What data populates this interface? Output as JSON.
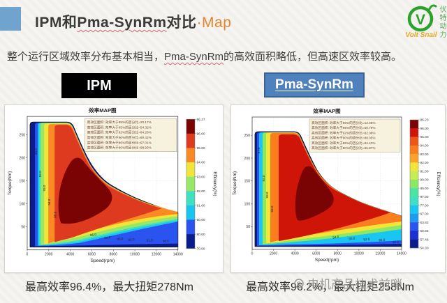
{
  "header": {
    "title_p1": "IPM和",
    "title_p2": "Pma-SynRm",
    "title_p3": "对比",
    "title_accent": "·Map",
    "logo": {
      "letter": "V",
      "brand": "Volt Snail",
      "vertical_text": "伏特动力"
    }
  },
  "subtitle": {
    "p1": "整个运行区域效率分布基本相当，",
    "hl": "Pma-SynRm",
    "p2": "的高效面积略低，但高速区效率较高。"
  },
  "section_labels": {
    "left": "IPM",
    "right": "Pma-SynRm"
  },
  "captions": {
    "left": "最高效率96.4%，最大扭矩278Nm",
    "right": "最高效率96.2%，最大扭矩258Nm"
  },
  "watermark": {
    "text": "电机产品技术前哨"
  },
  "colors": {
    "title_accent": "#e8842c",
    "header_bullet_blue": "#71a3cf",
    "pma_box_blue": "#4f81bd",
    "ipm_box_black": "#000000",
    "logo_green": "#2da12d",
    "logo_brand_yellow": "#e9a61f"
  },
  "chart_data": [
    {
      "type": "heatmap",
      "variant": "efficiency-contour-map",
      "motor": "IPM",
      "title": "效率MAP图",
      "xlabel": "Speed(rpm)",
      "ylabel": "Torque(Nm)",
      "colorbar_label": "Efficiency(%)",
      "xlim": [
        0,
        14000
      ],
      "ylim": [
        0,
        290
      ],
      "xticks": [
        0,
        2000,
        4000,
        6000,
        8000,
        10000,
        12000,
        14000
      ],
      "yticks": [
        50,
        100,
        150,
        200,
        250
      ],
      "max_torque_nm": 278,
      "peak_efficiency_pct": 96.4,
      "legend_lines": [
        "高效区面积: 效率大于96%的百分比=20.17%",
        "高效区面积: 效率大于95%的百分比=54.32%",
        "高效区面积: 效率大于92%的百分比=84.26%",
        "高效区面积: 效率大于90%的百分比=90.42%",
        "高效区面积: 效率大于85%的百分比=97.01%",
        "高效区面积: 效率大于80%的百分比=98.93%"
      ],
      "colorbar_ticks": [
        "96.27",
        "96.00",
        "95.00",
        "94.00",
        "93.00",
        "92.00",
        "91.00",
        "90.00",
        "80.00",
        "70.00"
      ],
      "colorbar_colors": [
        "#7a0403",
        "#dd3a20",
        "#fb8a24",
        "#f2e53a",
        "#96e866",
        "#3fe0c0",
        "#19c6f2",
        "#2a53f0",
        "#0b1c8c"
      ],
      "contour_labels": [
        {
          "t": "90.0",
          "x": 44,
          "y": 66,
          "r": -90
        },
        {
          "t": "92.0",
          "x": 50,
          "y": 98,
          "r": -90
        },
        {
          "t": "93.0",
          "x": 56,
          "y": 118,
          "r": -90
        },
        {
          "t": "94.0",
          "x": 63,
          "y": 138,
          "r": -90
        },
        {
          "t": "95.0",
          "x": 71,
          "y": 156,
          "r": -90
        },
        {
          "t": "95.0",
          "x": 124,
          "y": 186,
          "r": -8
        },
        {
          "t": "94.0",
          "x": 144,
          "y": 190,
          "r": -8
        },
        {
          "t": "93.0",
          "x": 162,
          "y": 192,
          "r": -7
        },
        {
          "t": "92.0",
          "x": 178,
          "y": 193,
          "r": -6
        },
        {
          "t": "91.0",
          "x": 204,
          "y": 194,
          "r": -5
        },
        {
          "t": "90.0",
          "x": 227,
          "y": 195,
          "r": -4
        }
      ]
    },
    {
      "type": "heatmap",
      "variant": "efficiency-contour-map",
      "motor": "Pma-SynRm",
      "title": "效率MAP图",
      "xlabel": "Speed(rpm)",
      "ylabel": "Torque(Nm)",
      "colorbar_label": "Efficiency(%)",
      "xlim": [
        0,
        14000
      ],
      "ylim": [
        0,
        290
      ],
      "xticks": [
        0,
        2000,
        4000,
        6000,
        8000,
        10000,
        12000,
        14000
      ],
      "yticks": [
        50,
        100,
        150,
        200,
        250
      ],
      "max_torque_nm": 258,
      "peak_efficiency_pct": 96.2,
      "legend_lines": [
        "高效区面积: 效率大于96%的百分比=12.06%",
        "高效区面积: 效率大于95%的百分比=50.79%",
        "高效区面积: 效率大于92%的百分比=82.08%",
        "高效区面积: 效率大于90%的百分比=88.05%",
        "高效区面积: 效率大于85%的百分比=94.43%",
        "高效区面积: 效率大于80%的百分比=96.87%"
      ],
      "colorbar_ticks": [
        "96.23",
        "96.00",
        "95.00",
        "94.00",
        "93.00",
        "92.00",
        "91.00",
        "90.00",
        "89.00",
        "87.00",
        "77.00",
        "67.00",
        "63.83",
        "60.65",
        "57.48",
        "54.30"
      ],
      "colorbar_colors": [
        "#7a0403",
        "#cf1408",
        "#ef5418",
        "#fb7e1e",
        "#fda428",
        "#f2e53a",
        "#c6ee52",
        "#8ce863",
        "#4ae4a4",
        "#3fe0c0",
        "#19c6f2",
        "#1e9bef",
        "#2a53f0",
        "#1c2fd2",
        "#0b1c8c"
      ],
      "contour_labels": [
        {
          "t": "87.0",
          "x": 41,
          "y": 64,
          "r": -90
        },
        {
          "t": "92.0",
          "x": 48,
          "y": 104,
          "r": -90
        },
        {
          "t": "93.0",
          "x": 53,
          "y": 128,
          "r": -90
        },
        {
          "t": "94.0",
          "x": 60,
          "y": 148,
          "r": -90
        },
        {
          "t": "94.0",
          "x": 150,
          "y": 190,
          "r": -6
        },
        {
          "t": "93.0",
          "x": 173,
          "y": 192,
          "r": -5
        },
        {
          "t": "92.0",
          "x": 194,
          "y": 193,
          "r": -4
        },
        {
          "t": "91.0",
          "x": 216,
          "y": 194,
          "r": -4
        },
        {
          "t": "87.0",
          "x": 236,
          "y": 197,
          "r": -3
        }
      ]
    }
  ]
}
